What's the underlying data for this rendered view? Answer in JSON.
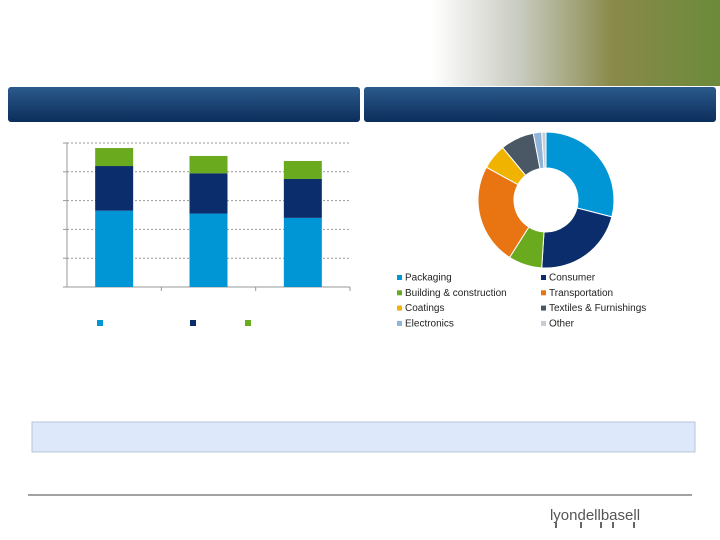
{
  "chart_data": [
    {
      "type": "bar",
      "stacked": true,
      "categories": [
        null,
        null,
        null
      ],
      "series": [
        {
          "color": "#0096d6",
          "values": [
            53,
            51,
            48
          ]
        },
        {
          "color": "#0c2d6b",
          "values": [
            31,
            28,
            27
          ]
        },
        {
          "color": "#6aaa1e",
          "values": [
            12.5,
            12,
            12.5
          ]
        }
      ],
      "ylim": [
        0,
        100
      ],
      "yticks": [
        0,
        20,
        40,
        60,
        80,
        100
      ],
      "grid": true
    },
    {
      "type": "pie",
      "donut": true,
      "categories": [
        "Packaging",
        "Consumer",
        "Building & construction",
        "Transportation",
        "Coatings",
        "Textiles & Furnishings",
        "Electronics",
        "Other"
      ],
      "values": [
        29,
        22,
        8,
        24,
        6,
        8,
        2,
        1
      ],
      "colors": [
        "#0096d6",
        "#0c2d6b",
        "#6aaa1e",
        "#e87511",
        "#f0b400",
        "#4a5866",
        "#8fb4d9",
        "#c8ccd4"
      ]
    }
  ],
  "footer": {
    "logo": "lyondellbasell"
  }
}
